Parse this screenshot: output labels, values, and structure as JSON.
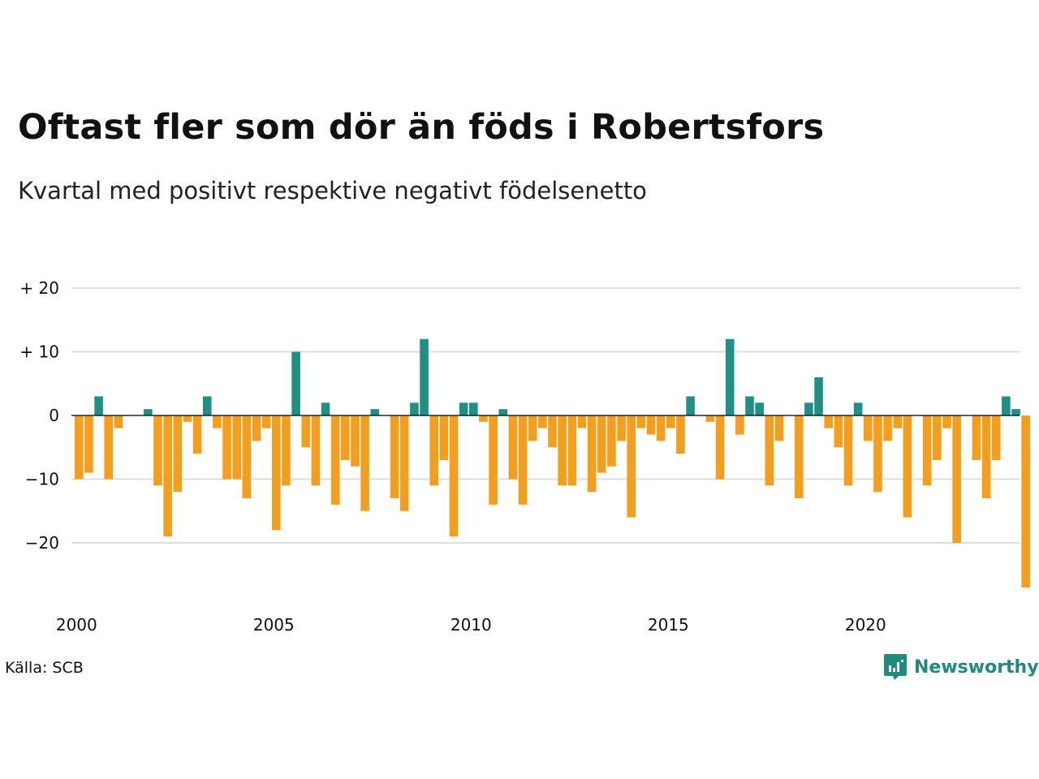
{
  "title": "Oftast fler som dör än föds i Robertsfors",
  "subtitle": "Kvartal med positivt respektive negativt födelsenetto",
  "source": "Källa: SCB",
  "brand": "Newsworthy",
  "colors": {
    "positive": "#1e9085",
    "negative": "#f59e1b",
    "grid": "#dddddd",
    "baseline": "#000000",
    "brand": "#1f8a7e"
  },
  "chart_data": {
    "type": "bar",
    "title": "Oftast fler som dör än föds i Robertsfors",
    "subtitle": "Kvartal med positivt respektive negativt födelsenetto",
    "xlabel": "",
    "ylabel": "",
    "x_ticks": [
      "2000",
      "2005",
      "2010",
      "2015",
      "2020"
    ],
    "y_ticks": [
      {
        "value": 20,
        "label": "+ 20"
      },
      {
        "value": 10,
        "label": "+ 10"
      },
      {
        "value": 0,
        "label": "0"
      },
      {
        "value": -10,
        "label": "−10"
      },
      {
        "value": -20,
        "label": "−20"
      }
    ],
    "ylim": [
      -28,
      20
    ],
    "grid": true,
    "start": "2000 Q1",
    "categories": [
      "2000 Q1",
      "2000 Q2",
      "2000 Q3",
      "2000 Q4",
      "2001 Q1",
      "2001 Q2",
      "2001 Q3",
      "2001 Q4",
      "2002 Q1",
      "2002 Q2",
      "2002 Q3",
      "2002 Q4",
      "2003 Q1",
      "2003 Q2",
      "2003 Q3",
      "2003 Q4",
      "2004 Q1",
      "2004 Q2",
      "2004 Q3",
      "2004 Q4",
      "2005 Q1",
      "2005 Q2",
      "2005 Q3",
      "2005 Q4",
      "2006 Q1",
      "2006 Q2",
      "2006 Q3",
      "2006 Q4",
      "2007 Q1",
      "2007 Q2",
      "2007 Q3",
      "2007 Q4",
      "2008 Q1",
      "2008 Q2",
      "2008 Q3",
      "2008 Q4",
      "2009 Q1",
      "2009 Q2",
      "2009 Q3",
      "2009 Q4",
      "2010 Q1",
      "2010 Q2",
      "2010 Q3",
      "2010 Q4",
      "2011 Q1",
      "2011 Q2",
      "2011 Q3",
      "2011 Q4",
      "2012 Q1",
      "2012 Q2",
      "2012 Q3",
      "2012 Q4",
      "2013 Q1",
      "2013 Q2",
      "2013 Q3",
      "2013 Q4",
      "2014 Q1",
      "2014 Q2",
      "2014 Q3",
      "2014 Q4",
      "2015 Q1",
      "2015 Q2",
      "2015 Q3",
      "2015 Q4",
      "2016 Q1",
      "2016 Q2",
      "2016 Q3",
      "2016 Q4",
      "2017 Q1",
      "2017 Q2",
      "2017 Q3",
      "2017 Q4",
      "2018 Q1",
      "2018 Q2",
      "2018 Q3",
      "2018 Q4",
      "2019 Q1",
      "2019 Q2",
      "2019 Q3",
      "2019 Q4",
      "2020 Q1",
      "2020 Q2",
      "2020 Q3",
      "2020 Q4",
      "2021 Q1",
      "2021 Q2",
      "2021 Q3",
      "2021 Q4",
      "2022 Q1",
      "2022 Q2",
      "2022 Q3",
      "2022 Q4",
      "2023 Q1",
      "2023 Q2",
      "2023 Q3",
      "2023 Q4",
      "2024 Q1"
    ],
    "values": [
      -10,
      -9,
      3,
      -10,
      -2,
      0,
      0,
      1,
      -11,
      -19,
      -12,
      -1,
      -6,
      3,
      -2,
      -10,
      -10,
      -13,
      -4,
      -2,
      -18,
      -11,
      10,
      -5,
      -11,
      2,
      -14,
      -7,
      -8,
      -15,
      1,
      0,
      -13,
      -15,
      2,
      12,
      -11,
      -7,
      -19,
      2,
      2,
      -1,
      -14,
      1,
      -10,
      -14,
      -4,
      -2,
      -5,
      -11,
      -11,
      -2,
      -12,
      -9,
      -8,
      -4,
      -16,
      -2,
      -3,
      -4,
      -2,
      -6,
      3,
      0,
      -1,
      -10,
      12,
      -3,
      3,
      2,
      -11,
      -4,
      0,
      -13,
      2,
      6,
      -2,
      -5,
      -11,
      2,
      -4,
      -12,
      -4,
      -2,
      -16,
      0,
      -11,
      -7,
      -2,
      -20,
      0,
      -7,
      -13,
      -7,
      3,
      1,
      -27
    ]
  }
}
